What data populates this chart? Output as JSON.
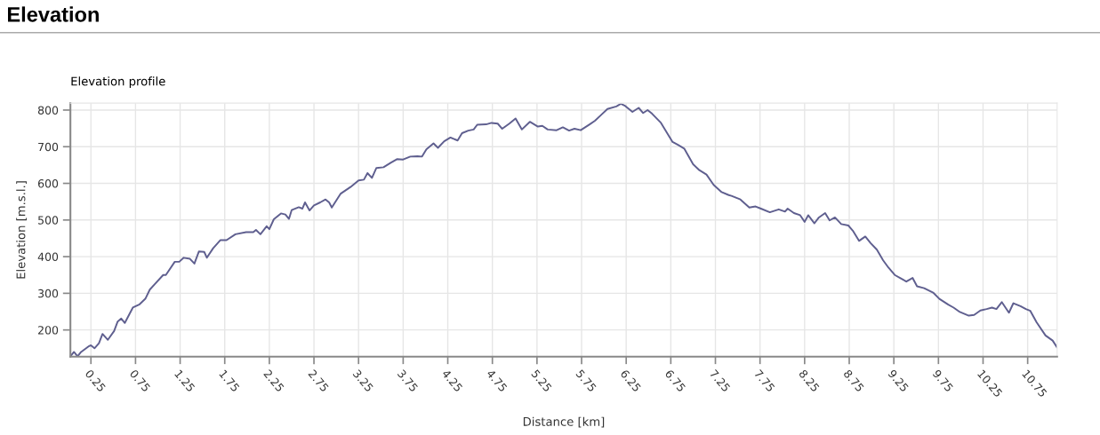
{
  "chart_data": {
    "type": "line",
    "title": "Elevation",
    "subtitle": "Elevation profile",
    "xlabel": "Distance [km]",
    "ylabel": "Elevation [m.s.l.]",
    "xlim": [
      0.02,
      11.08
    ],
    "ylim": [
      127,
      819
    ],
    "xticks": [
      0.25,
      0.75,
      1.25,
      1.75,
      2.25,
      2.75,
      3.25,
      3.75,
      4.25,
      4.75,
      5.25,
      5.75,
      6.25,
      6.75,
      7.25,
      7.75,
      8.25,
      8.75,
      9.25,
      9.75,
      10.25,
      10.75
    ],
    "yticks": [
      200,
      300,
      400,
      500,
      600,
      700,
      800
    ],
    "grid": true,
    "marker": "none",
    "line_style": "solid",
    "series": [
      {
        "color": "#5f5f8f",
        "x": [
          0.02,
          0.06,
          0.1,
          0.14,
          0.23,
          0.25,
          0.29,
          0.34,
          0.38,
          0.44,
          0.51,
          0.55,
          0.59,
          0.63,
          0.72,
          0.79,
          0.86,
          0.91,
          0.97,
          1.06,
          1.09,
          1.19,
          1.24,
          1.29,
          1.36,
          1.41,
          1.46,
          1.52,
          1.55,
          1.62,
          1.7,
          1.77,
          1.87,
          1.99,
          2.07,
          2.1,
          2.15,
          2.22,
          2.25,
          2.3,
          2.38,
          2.43,
          2.47,
          2.5,
          2.58,
          2.62,
          2.65,
          2.7,
          2.75,
          2.82,
          2.88,
          2.92,
          2.95,
          3.05,
          3.16,
          3.25,
          3.31,
          3.35,
          3.4,
          3.45,
          3.53,
          3.61,
          3.68,
          3.75,
          3.83,
          3.91,
          3.96,
          4.01,
          4.09,
          4.14,
          4.21,
          4.28,
          4.36,
          4.41,
          4.48,
          4.54,
          4.58,
          4.68,
          4.74,
          4.81,
          4.86,
          4.94,
          5.01,
          5.08,
          5.17,
          5.26,
          5.31,
          5.37,
          5.47,
          5.54,
          5.61,
          5.67,
          5.74,
          5.84,
          5.9,
          5.97,
          6.04,
          6.14,
          6.19,
          6.24,
          6.32,
          6.39,
          6.44,
          6.49,
          6.54,
          6.64,
          6.72,
          6.77,
          6.83,
          6.9,
          7.0,
          7.07,
          7.15,
          7.23,
          7.32,
          7.4,
          7.43,
          7.53,
          7.63,
          7.7,
          7.76,
          7.86,
          7.96,
          8.03,
          8.06,
          8.13,
          8.2,
          8.25,
          8.29,
          8.36,
          8.41,
          8.48,
          8.53,
          8.59,
          8.66,
          8.74,
          8.79,
          8.86,
          8.93,
          8.99,
          9.06,
          9.13,
          9.19,
          9.26,
          9.32,
          9.39,
          9.46,
          9.51,
          9.59,
          9.69,
          9.76,
          9.86,
          9.92,
          9.99,
          10.09,
          10.15,
          10.22,
          10.29,
          10.35,
          10.4,
          10.46,
          10.54,
          10.59,
          10.67,
          10.73,
          10.78,
          10.85,
          10.95,
          11.03,
          11.08
        ],
        "values": [
          128,
          140,
          128,
          140,
          156,
          158,
          150,
          164,
          189,
          173,
          197,
          223,
          231,
          219,
          261,
          269,
          285,
          310,
          326,
          350,
          350,
          386,
          386,
          397,
          394,
          381,
          414,
          413,
          397,
          423,
          445,
          445,
          461,
          467,
          467,
          473,
          461,
          483,
          475,
          502,
          518,
          515,
          503,
          527,
          535,
          531,
          548,
          526,
          540,
          548,
          556,
          548,
          534,
          572,
          590,
          608,
          610,
          628,
          615,
          642,
          644,
          656,
          666,
          665,
          673,
          674,
          673,
          693,
          709,
          697,
          715,
          725,
          717,
          737,
          744,
          747,
          760,
          761,
          765,
          763,
          749,
          763,
          777,
          747,
          768,
          755,
          757,
          747,
          745,
          753,
          744,
          749,
          745,
          761,
          771,
          787,
          803,
          810,
          817,
          811,
          795,
          806,
          792,
          800,
          790,
          765,
          733,
          713,
          705,
          695,
          652,
          636,
          624,
          596,
          576,
          568,
          566,
          556,
          534,
          537,
          531,
          521,
          529,
          523,
          531,
          519,
          513,
          495,
          513,
          491,
          507,
          519,
          499,
          507,
          489,
          485,
          471,
          443,
          455,
          437,
          419,
          390,
          370,
          350,
          342,
          332,
          342,
          319,
          314,
          302,
          285,
          269,
          261,
          249,
          239,
          241,
          253,
          257,
          261,
          257,
          276,
          247,
          273,
          265,
          257,
          252,
          221,
          185,
          171,
          152
        ]
      }
    ]
  }
}
